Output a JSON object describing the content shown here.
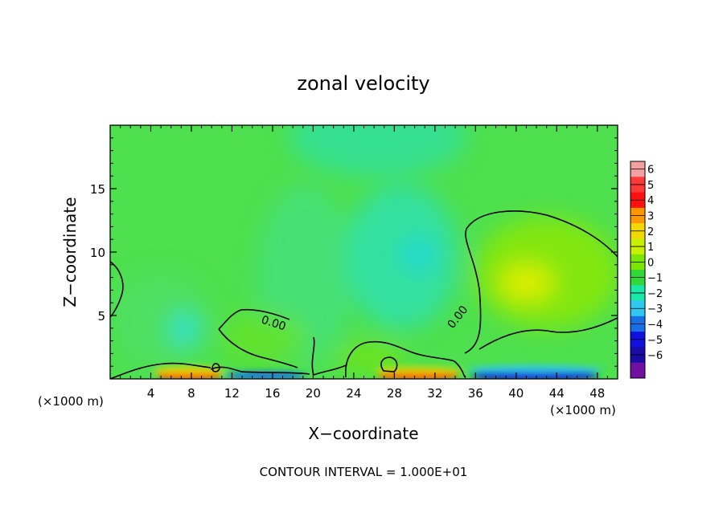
{
  "chart_data": {
    "type": "heatmap",
    "title": "zonal velocity",
    "xlabel": "X−coordinate",
    "ylabel": "Z−coordinate",
    "x_unit_left": "(×1000 m)",
    "x_unit_right": "(×1000 m)",
    "footer": "CONTOUR INTERVAL = 1.000E+01",
    "xlim": [
      0,
      50
    ],
    "ylim": [
      0,
      20
    ],
    "x_ticks": [
      4,
      8,
      12,
      16,
      20,
      24,
      28,
      32,
      36,
      40,
      44,
      48
    ],
    "y_ticks": [
      5,
      10,
      15
    ],
    "colorbar": {
      "range": [
        -6,
        6
      ],
      "ticks": [
        "6",
        "5",
        "4",
        "3",
        "2",
        "1",
        "0",
        "−1",
        "−2",
        "−3",
        "−4",
        "−5",
        "−6"
      ],
      "colors": [
        "#F4A0A0",
        "#FF3838",
        "#FF1010",
        "#FF9800",
        "#F2D800",
        "#C8F000",
        "#7CE600",
        "#30D838",
        "#18E8A8",
        "#30C8F0",
        "#1870E8",
        "#1010E0",
        "#1A0AA8",
        "#7010A0"
      ]
    },
    "contour_labels": [
      {
        "text": "0.00",
        "x": 14.2,
        "z": 4.6
      },
      {
        "text": "0.00",
        "x": 34.3,
        "z": 5.0
      }
    ],
    "features": [
      {
        "desc": "weak negative",
        "x": 30,
        "z": 10,
        "value": -2
      },
      {
        "desc": "positive core",
        "x": 41,
        "z": 7.7,
        "value": 1.5
      },
      {
        "desc": "strong positive near ground",
        "x": 7.5,
        "z": 0.3,
        "value": 4
      },
      {
        "desc": "strong positive near ground",
        "x": 29.5,
        "z": 0.3,
        "value": 4
      },
      {
        "desc": "strong negative near ground",
        "x": 44,
        "z": 0.3,
        "value": -5
      },
      {
        "desc": "weak negative",
        "x": 7.5,
        "z": 3.5,
        "value": -2
      }
    ]
  }
}
